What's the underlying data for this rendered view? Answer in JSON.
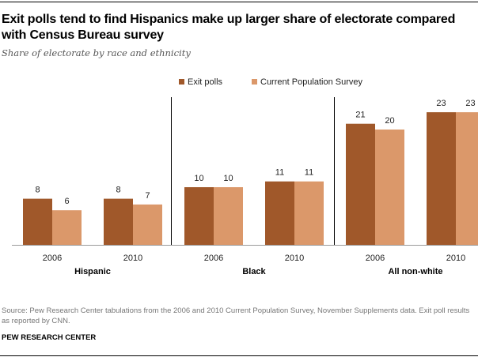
{
  "header": {
    "title": "Exit polls tend to find Hispanics make up larger share of electorate compared with Census Bureau survey",
    "subtitle": "Share of electorate by race and ethnicity"
  },
  "footer": {
    "source": "Source:  Pew Research Center tabulations from the 2006 and 2010 Current Population Survey, November Supplements data. Exit poll results as reported by CNN.",
    "organization": "PEW RESEARCH CENTER"
  },
  "colors": {
    "exit_polls": "#A0582A",
    "cps": "#DB986A",
    "axis": "#999999"
  },
  "chart_data": {
    "type": "bar",
    "title": "Exit polls tend to find Hispanics make up larger share of electorate compared with Census Bureau survey",
    "subtitle": "Share of electorate by race and ethnicity",
    "xlabel": "",
    "ylabel": "",
    "ylim": [
      0,
      23
    ],
    "grid": false,
    "legend_position": "top-center",
    "groups": [
      {
        "name": "Hispanic",
        "categories": [
          "2006",
          "2010"
        ]
      },
      {
        "name": "Black",
        "categories": [
          "2006",
          "2010"
        ]
      },
      {
        "name": "All non-white",
        "categories": [
          "2006",
          "2010"
        ]
      }
    ],
    "series": [
      {
        "name": "Exit polls",
        "values": [
          [
            8,
            8
          ],
          [
            10,
            11
          ],
          [
            21,
            23
          ]
        ]
      },
      {
        "name": "Current Population Survey",
        "values": [
          [
            6,
            7
          ],
          [
            10,
            11
          ],
          [
            20,
            23
          ]
        ]
      }
    ]
  }
}
